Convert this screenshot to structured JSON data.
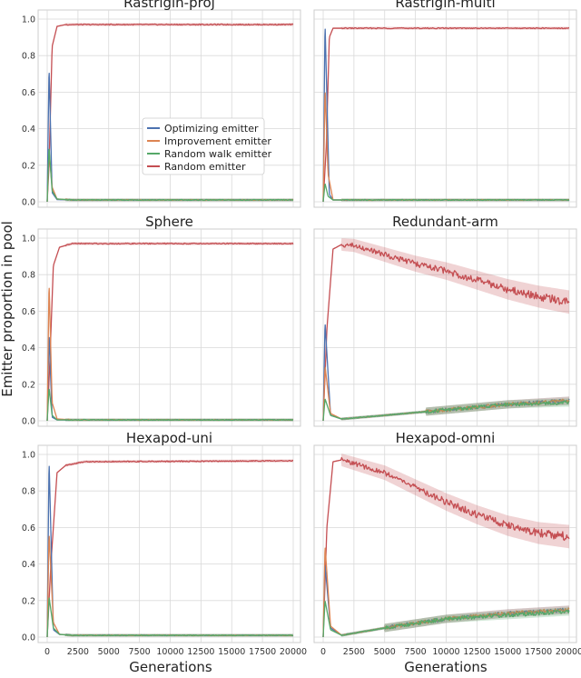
{
  "figure": {
    "ylabel": "Emitter proportion in pool",
    "xlabel": "Generations",
    "colors": {
      "optimizing": "#4c72b0",
      "improvement": "#dd8452",
      "random_walk": "#55a868",
      "random": "#c44e52",
      "grid": "#d9d9d9",
      "frame": "#cccccc"
    },
    "legend": {
      "panel": "Rastrigin-proj",
      "entries": [
        "Optimizing emitter",
        "Improvement emitter",
        "Random walk emitter",
        "Random emitter"
      ]
    },
    "xticks": [
      "0",
      "2500",
      "5000",
      "7500",
      "10000",
      "12500",
      "15000",
      "17500",
      "20000"
    ],
    "yticks": [
      "0.0",
      "0.2",
      "0.4",
      "0.6",
      "0.8",
      "1.0"
    ]
  },
  "chart_data": [
    {
      "type": "line",
      "title": "Rastrigin-proj",
      "xlim": [
        0,
        20000
      ],
      "ylim": [
        0,
        1
      ],
      "series": [
        {
          "name": "Optimizing emitter",
          "x": [
            0,
            150,
            400,
            800,
            2000,
            20000
          ],
          "values": [
            0.0,
            0.74,
            0.05,
            0.012,
            0.01,
            0.01
          ]
        },
        {
          "name": "Improvement emitter",
          "x": [
            0,
            150,
            400,
            800,
            2000,
            20000
          ],
          "values": [
            0.0,
            0.28,
            0.08,
            0.015,
            0.01,
            0.01
          ]
        },
        {
          "name": "Random walk emitter",
          "x": [
            0,
            150,
            400,
            800,
            2000,
            20000
          ],
          "values": [
            0.0,
            0.3,
            0.06,
            0.015,
            0.01,
            0.01
          ]
        },
        {
          "name": "Random emitter",
          "x": [
            0,
            150,
            400,
            800,
            1500,
            5000,
            20000
          ],
          "values": [
            0.0,
            0.2,
            0.85,
            0.96,
            0.97,
            0.97,
            0.97
          ]
        }
      ]
    },
    {
      "type": "line",
      "title": "Rastrigin-multi",
      "xlim": [
        0,
        20000
      ],
      "ylim": [
        0,
        1
      ],
      "series": [
        {
          "name": "Optimizing emitter",
          "x": [
            0,
            150,
            500,
            800,
            2000,
            20000
          ],
          "values": [
            0.0,
            0.98,
            0.04,
            0.01,
            0.01,
            0.01
          ]
        },
        {
          "name": "Improvement emitter",
          "x": [
            0,
            150,
            400,
            800,
            2000,
            20000
          ],
          "values": [
            0.0,
            0.62,
            0.15,
            0.01,
            0.01,
            0.01
          ]
        },
        {
          "name": "Random walk emitter",
          "x": [
            0,
            150,
            400,
            800,
            2000,
            20000
          ],
          "values": [
            0.0,
            0.1,
            0.03,
            0.01,
            0.01,
            0.01
          ]
        },
        {
          "name": "Random emitter",
          "x": [
            0,
            250,
            500,
            800,
            2000,
            20000
          ],
          "values": [
            0.0,
            0.3,
            0.9,
            0.95,
            0.95,
            0.95
          ]
        }
      ]
    },
    {
      "type": "line",
      "title": "Sphere",
      "xlim": [
        0,
        20000
      ],
      "ylim": [
        0,
        1
      ],
      "series": [
        {
          "name": "Optimizing emitter",
          "x": [
            0,
            150,
            400,
            800,
            2000,
            20000
          ],
          "values": [
            0.0,
            0.48,
            0.02,
            0.005,
            0.005,
            0.005
          ]
        },
        {
          "name": "Improvement emitter",
          "x": [
            0,
            150,
            400,
            800,
            2000,
            20000
          ],
          "values": [
            0.0,
            0.76,
            0.1,
            0.01,
            0.005,
            0.005
          ]
        },
        {
          "name": "Random walk emitter",
          "x": [
            0,
            150,
            400,
            800,
            2000,
            20000
          ],
          "values": [
            0.0,
            0.18,
            0.03,
            0.005,
            0.005,
            0.005
          ]
        },
        {
          "name": "Random emitter",
          "x": [
            0,
            200,
            500,
            1000,
            2000,
            20000
          ],
          "values": [
            0.0,
            0.3,
            0.85,
            0.95,
            0.97,
            0.97
          ]
        }
      ]
    },
    {
      "type": "line",
      "title": "Redundant-arm",
      "xlim": [
        0,
        20000
      ],
      "ylim": [
        0,
        1
      ],
      "series": [
        {
          "name": "Optimizing emitter",
          "x": [
            0,
            150,
            600,
            1500,
            5000,
            10000,
            15000,
            20000
          ],
          "values": [
            0.0,
            0.54,
            0.03,
            0.01,
            0.03,
            0.06,
            0.09,
            0.11
          ]
        },
        {
          "name": "Improvement emitter",
          "x": [
            0,
            150,
            600,
            1500,
            5000,
            10000,
            15000,
            20000
          ],
          "values": [
            0.0,
            0.3,
            0.04,
            0.01,
            0.03,
            0.06,
            0.09,
            0.11
          ]
        },
        {
          "name": "Random walk emitter",
          "x": [
            0,
            150,
            600,
            1500,
            5000,
            10000,
            15000,
            20000
          ],
          "values": [
            0.0,
            0.12,
            0.03,
            0.01,
            0.03,
            0.06,
            0.09,
            0.1
          ]
        },
        {
          "name": "Random emitter",
          "x": [
            0,
            300,
            800,
            1500,
            2500,
            5000,
            7500,
            10000,
            12500,
            15000,
            17500,
            20000
          ],
          "values": [
            0.0,
            0.5,
            0.94,
            0.965,
            0.96,
            0.91,
            0.86,
            0.82,
            0.77,
            0.72,
            0.68,
            0.65
          ]
        }
      ]
    },
    {
      "type": "line",
      "title": "Hexapod-uni",
      "xlim": [
        0,
        20000
      ],
      "ylim": [
        0,
        1
      ],
      "series": [
        {
          "name": "Optimizing emitter",
          "x": [
            0,
            150,
            500,
            1000,
            2000,
            20000
          ],
          "values": [
            0.0,
            0.97,
            0.04,
            0.015,
            0.01,
            0.01
          ]
        },
        {
          "name": "Improvement emitter",
          "x": [
            0,
            150,
            500,
            1000,
            2000,
            20000
          ],
          "values": [
            0.0,
            0.57,
            0.08,
            0.015,
            0.01,
            0.01
          ]
        },
        {
          "name": "Random walk emitter",
          "x": [
            0,
            150,
            500,
            1000,
            2000,
            20000
          ],
          "values": [
            0.0,
            0.22,
            0.05,
            0.015,
            0.01,
            0.01
          ]
        },
        {
          "name": "Random emitter",
          "x": [
            0,
            300,
            800,
            1500,
            3000,
            20000
          ],
          "values": [
            0.0,
            0.4,
            0.9,
            0.94,
            0.96,
            0.965
          ]
        }
      ]
    },
    {
      "type": "line",
      "title": "Hexapod-omni",
      "xlim": [
        0,
        20000
      ],
      "ylim": [
        0,
        1
      ],
      "series": [
        {
          "name": "Optimizing emitter",
          "x": [
            0,
            150,
            600,
            1500,
            5000,
            10000,
            15000,
            20000
          ],
          "values": [
            0.0,
            0.4,
            0.05,
            0.01,
            0.05,
            0.1,
            0.13,
            0.15
          ]
        },
        {
          "name": "Improvement emitter",
          "x": [
            0,
            150,
            600,
            1500,
            5000,
            10000,
            15000,
            20000
          ],
          "values": [
            0.0,
            0.5,
            0.06,
            0.01,
            0.05,
            0.1,
            0.13,
            0.15
          ]
        },
        {
          "name": "Random walk emitter",
          "x": [
            0,
            150,
            600,
            1500,
            5000,
            10000,
            15000,
            20000
          ],
          "values": [
            0.0,
            0.2,
            0.04,
            0.01,
            0.05,
            0.1,
            0.12,
            0.14
          ]
        },
        {
          "name": "Random emitter",
          "x": [
            0,
            300,
            800,
            1500,
            2500,
            5000,
            7500,
            10000,
            12500,
            15000,
            17500,
            20000
          ],
          "values": [
            0.0,
            0.6,
            0.96,
            0.97,
            0.95,
            0.9,
            0.82,
            0.74,
            0.67,
            0.61,
            0.57,
            0.55
          ]
        }
      ]
    }
  ]
}
